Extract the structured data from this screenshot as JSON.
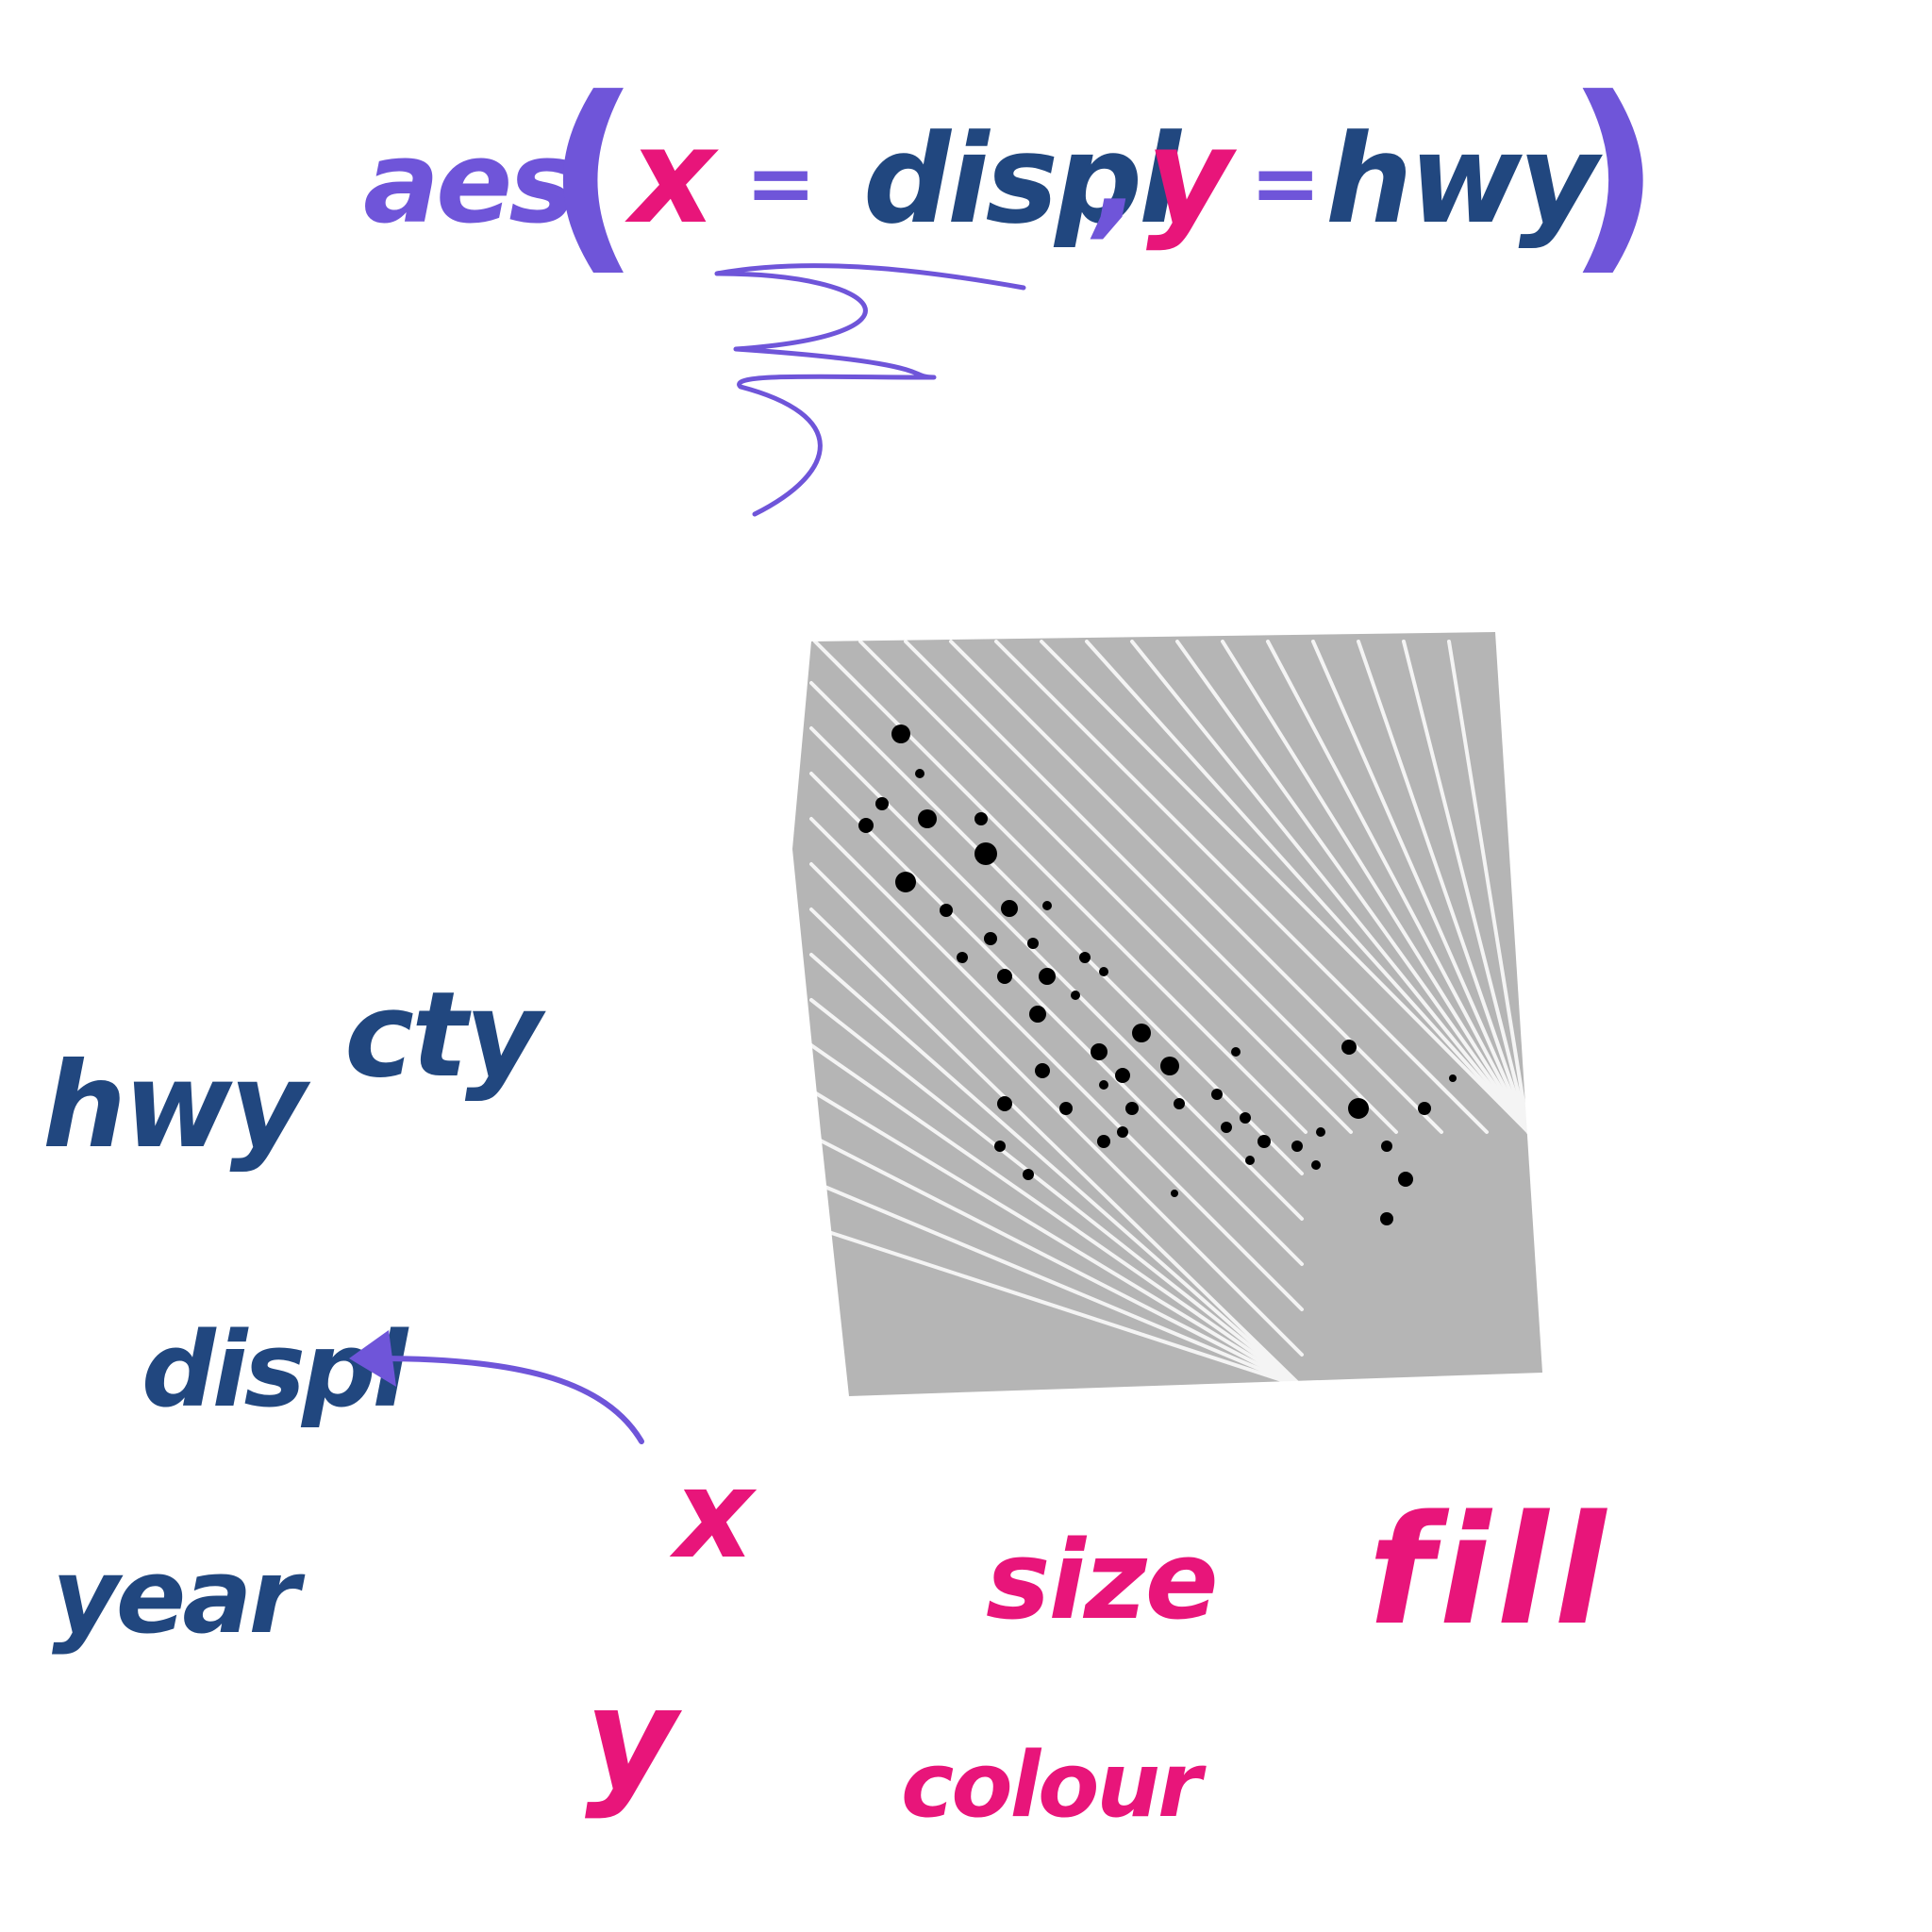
{
  "colors": {
    "purple": "#6f55d9",
    "pink": "#e8157a",
    "navy": "#21477f",
    "panel_gray": "#b5b5b5",
    "point_black": "#000000",
    "background": "#ffffff"
  },
  "formula": {
    "fn": "aes",
    "open_paren": "(",
    "x_arg": "x",
    "eq1": "=",
    "x_val": "displ",
    "comma": ",",
    "y_arg": "y",
    "eq2": "=",
    "y_val": "hwy",
    "close_paren": ")"
  },
  "variables": {
    "hwy": "hwy",
    "cty": "cty",
    "displ": "displ",
    "year": "year"
  },
  "aesthetics": {
    "x": "x",
    "y": "y",
    "size": "size",
    "colour": "colour",
    "fill": "fill"
  },
  "icons": {
    "scribble": "squiggle-icon",
    "arrow": "curved-arrow-icon"
  }
}
